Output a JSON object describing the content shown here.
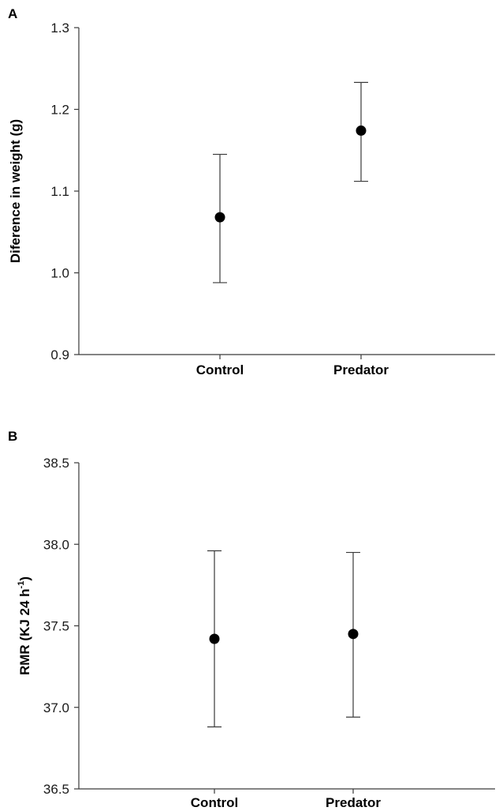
{
  "chart_data": [
    {
      "panel_label": "A",
      "type": "scatter",
      "title": "",
      "xlabel": "",
      "ylabel": "Diference in weight (g)",
      "ylabel_sup": "",
      "ylabel_end": "",
      "categories": [
        "Control",
        "Predator"
      ],
      "values": [
        1.068,
        1.174
      ],
      "error_low": [
        0.988,
        1.112
      ],
      "error_high": [
        1.145,
        1.233
      ],
      "ylim": [
        0.9,
        1.3
      ],
      "yticks": [
        "0.9",
        "1.0",
        "1.1",
        "1.2",
        "1.3"
      ],
      "grid": false,
      "legend": false
    },
    {
      "panel_label": "B",
      "type": "scatter",
      "title": "",
      "xlabel": "",
      "ylabel": "RMR (KJ 24 h",
      "ylabel_sup": "-1",
      "ylabel_end": ")",
      "categories": [
        "Control",
        "Predator"
      ],
      "values": [
        37.42,
        37.45
      ],
      "error_low": [
        36.88,
        36.94
      ],
      "error_high": [
        37.96,
        37.95
      ],
      "ylim": [
        36.5,
        38.5
      ],
      "yticks": [
        "36.5",
        "37.0",
        "37.5",
        "38.0",
        "38.5"
      ],
      "grid": false,
      "legend": false
    }
  ],
  "colors": {
    "axis": "#3a3a3a",
    "marker": "#000000"
  }
}
